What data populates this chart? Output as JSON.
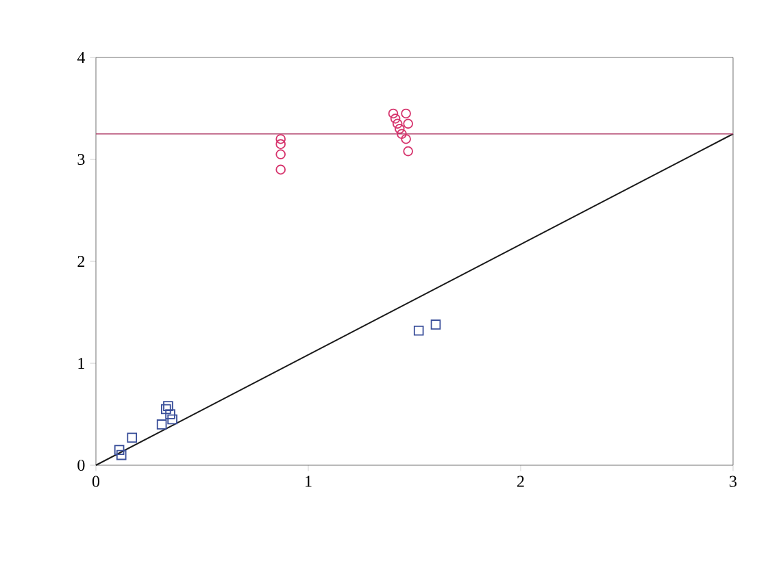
{
  "chart_data": {
    "type": "scatter",
    "xlim": [
      0,
      3
    ],
    "ylim": [
      0,
      4
    ],
    "xticks": [
      0,
      1,
      2,
      3
    ],
    "yticks": [
      0,
      1,
      2,
      3,
      4
    ],
    "grid": false,
    "ref_lines": [
      {
        "axis": "y",
        "value": 3.25,
        "color": "#b0406a"
      }
    ],
    "series": [
      {
        "type": "scatter",
        "marker": "circle",
        "color": "#d6336c",
        "x": [
          0.87,
          0.87,
          0.87,
          0.87,
          1.4,
          1.41,
          1.42,
          1.43,
          1.44,
          1.46,
          1.47,
          1.46,
          1.47
        ],
        "values": [
          3.2,
          3.15,
          3.05,
          2.9,
          3.45,
          3.4,
          3.35,
          3.3,
          3.25,
          3.45,
          3.35,
          3.2,
          3.08
        ]
      },
      {
        "type": "scatter",
        "marker": "square",
        "color": "#3a4f9a",
        "x": [
          0.12,
          0.11,
          0.17,
          0.31,
          0.33,
          0.35,
          0.36,
          0.34,
          1.52,
          1.6
        ],
        "values": [
          0.1,
          0.15,
          0.27,
          0.4,
          0.55,
          0.5,
          0.45,
          0.58,
          1.32,
          1.38
        ]
      },
      {
        "type": "line",
        "marker": "none",
        "color": "#1a1a1a",
        "x": [
          0,
          3
        ],
        "values": [
          0,
          3.25
        ]
      }
    ]
  }
}
